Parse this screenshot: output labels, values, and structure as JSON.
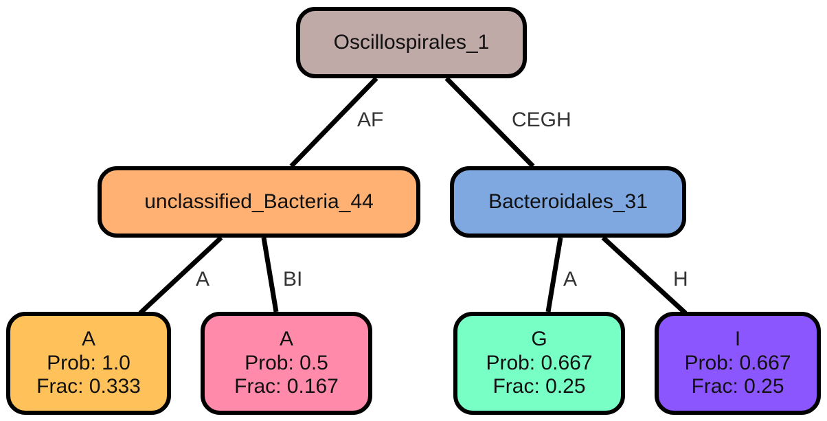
{
  "diagram": {
    "nodes": [
      {
        "id": "root",
        "label": "Oscillospirales_1",
        "color": "#c0aaa8"
      },
      {
        "id": "n44",
        "label": "unclassified_Bacteria_44",
        "color": "#ffb073"
      },
      {
        "id": "n31",
        "label": "Bacteroidales_31",
        "color": "#80a8e0"
      },
      {
        "id": "leaf1",
        "label": "A",
        "prob": "Prob: 1.0",
        "frac": "Frac: 0.333",
        "color": "#ffc25a"
      },
      {
        "id": "leaf2",
        "label": "A",
        "prob": "Prob: 0.5",
        "frac": "Frac: 0.167",
        "color": "#ff8aaa"
      },
      {
        "id": "leaf3",
        "label": "G",
        "prob": "Prob: 0.667",
        "frac": "Frac: 0.25",
        "color": "#78ffc6"
      },
      {
        "id": "leaf4",
        "label": "I",
        "prob": "Prob: 0.667",
        "frac": "Frac: 0.25",
        "color": "#8c56ff"
      }
    ],
    "edges": [
      {
        "from": "root",
        "to": "n44",
        "label": "AF"
      },
      {
        "from": "root",
        "to": "n31",
        "label": "CEGH"
      },
      {
        "from": "n44",
        "to": "leaf1",
        "label": "A"
      },
      {
        "from": "n44",
        "to": "leaf2",
        "label": "BI"
      },
      {
        "from": "n31",
        "to": "leaf3",
        "label": "A"
      },
      {
        "from": "n31",
        "to": "leaf4",
        "label": "H"
      }
    ]
  }
}
